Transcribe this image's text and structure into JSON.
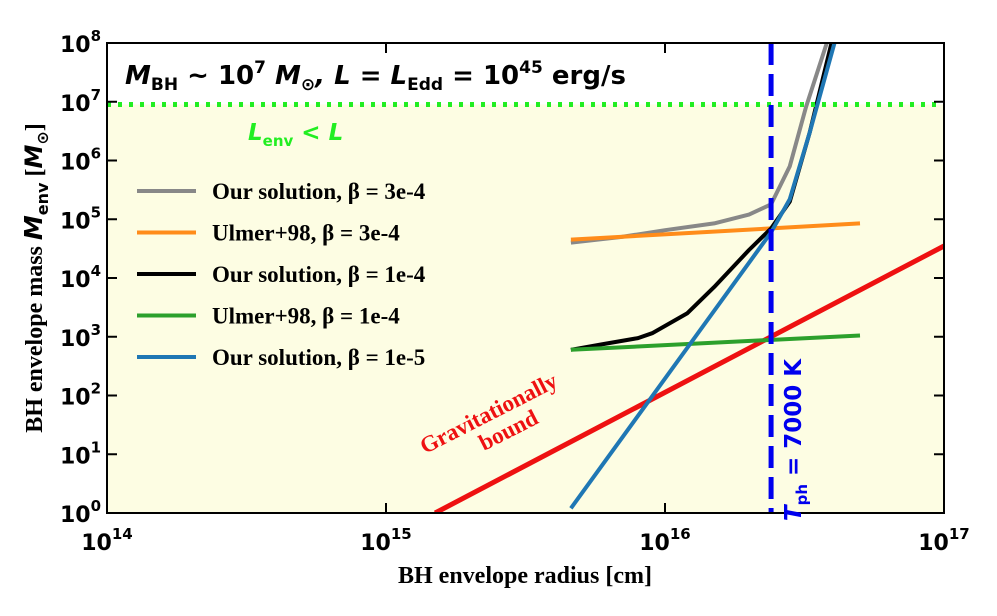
{
  "chart_data": {
    "type": "line",
    "annotation_parts": [
      "M",
      "BH",
      " ~ 10",
      "7",
      " M",
      "⊙",
      ", L = L",
      "Edd",
      " = 10",
      "45",
      " erg/s"
    ],
    "xlabel": "BH envelope radius [cm]",
    "ylabel_parts": [
      "BH envelope mass ",
      "M",
      "env",
      " [",
      "M",
      "⊙",
      "]"
    ],
    "xlog": true,
    "ylog": true,
    "xlim": [
      100000000000000.0,
      1e+17
    ],
    "ylim": [
      1,
      100000000.0
    ],
    "xticks": [
      {
        "value": 100000000000000.0,
        "label": "10^14"
      },
      {
        "value": 1000000000000000.0,
        "label": "10^15"
      },
      {
        "value": 1e+16,
        "label": "10^16"
      },
      {
        "value": 1e+17,
        "label": "10^17"
      }
    ],
    "yticks": [
      {
        "value": 1,
        "label": "10^0"
      },
      {
        "value": 10,
        "label": "10^1"
      },
      {
        "value": 100,
        "label": "10^2"
      },
      {
        "value": 1000,
        "label": "10^3"
      },
      {
        "value": 10000,
        "label": "10^4"
      },
      {
        "value": 100000,
        "label": "10^5"
      },
      {
        "value": 1000000,
        "label": "10^6"
      },
      {
        "value": 10000000,
        "label": "10^7"
      },
      {
        "value": 100000000,
        "label": "10^8"
      }
    ],
    "series": [
      {
        "name": "Our solution, β =  3e-4",
        "color": "#888888",
        "x": [
          4600000000000000.0,
          7000000000000000.0,
          1e+16,
          1.5e+16,
          2e+16,
          2.4e+16,
          2.8e+16,
          3.2e+16,
          3.8e+16
        ],
        "values": [
          40000,
          50000,
          65000,
          85000,
          120000,
          180000,
          800000,
          8000000,
          100000000
        ]
      },
      {
        "name": "Ulmer+98, β =  3e-4",
        "color": "#ff8c1a",
        "x": [
          4600000000000000.0,
          5e+16
        ],
        "values": [
          45000,
          85000
        ]
      },
      {
        "name": "Our solution, β =  1e-4",
        "color": "#000000",
        "x": [
          4600000000000000.0,
          6000000000000000.0,
          8000000000000000.0,
          9000000000000000.0,
          1.2e+16,
          1.5e+16,
          2e+16,
          2.4e+16,
          2.8e+16,
          3.3e+16,
          3.95e+16
        ],
        "values": [
          600,
          750,
          950,
          1150,
          2500,
          7000,
          30000,
          70000,
          200000,
          3000000,
          100000000
        ]
      },
      {
        "name": "Ulmer+98, β =  1e-4",
        "color": "#2ca02c",
        "x": [
          4600000000000000.0,
          5e+16
        ],
        "values": [
          600,
          1050
        ]
      },
      {
        "name": "Our solution, β =  1e-5",
        "color": "#1f77b4",
        "x": [
          4600000000000000.0,
          2.4e+16,
          2.8e+16,
          3.3e+16,
          4.05e+16
        ],
        "values": [
          1.2,
          60000,
          220000,
          3000000,
          100000000
        ]
      }
    ],
    "bound_line": {
      "x": [
        1500000000000000.0,
        1e+17
      ],
      "values": [
        1,
        35000
      ],
      "color": "#ee1111",
      "label_parts": [
        "Gravitationally",
        "bound"
      ]
    },
    "hline": {
      "value": 9000000,
      "color": "#22ee22",
      "label_parts": [
        "L",
        "env",
        " < L"
      ]
    },
    "vline": {
      "value": 2.4e+16,
      "color": "#0000ee",
      "label_parts": [
        "T",
        "ph",
        " = 7000 K"
      ]
    },
    "shade_color": "#fdfde3"
  }
}
